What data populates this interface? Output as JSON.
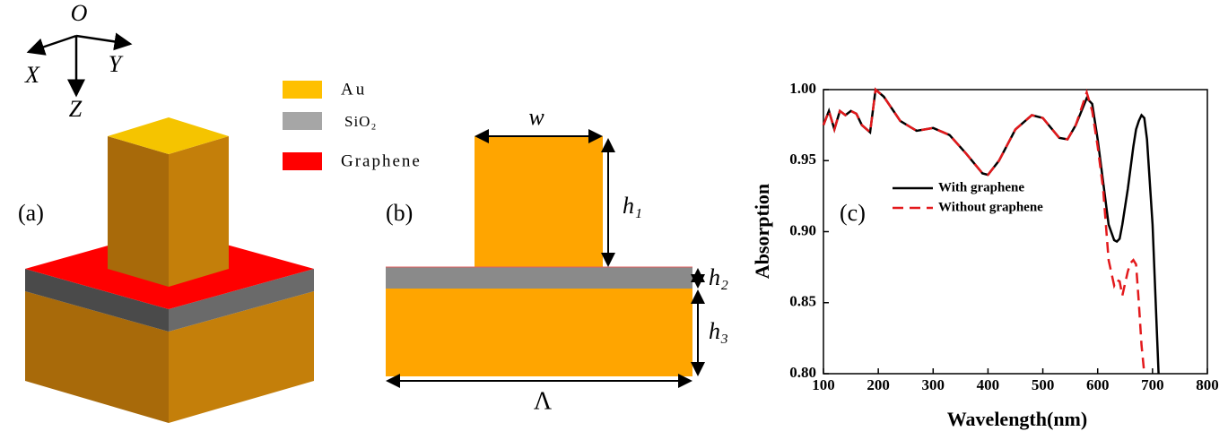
{
  "panel_a": {
    "axes": {
      "origin": "O",
      "x": "X",
      "y": "Y",
      "z": "Z"
    },
    "legend": [
      "Au",
      "SiO₂",
      "Graphene"
    ],
    "label": "(a)"
  },
  "panel_b": {
    "width": "w",
    "h1": "h₁",
    "h2": "h₂",
    "h3": "h₃",
    "period": "Λ",
    "label": "(b)"
  },
  "chart_data": {
    "type": "line",
    "label": "(c)",
    "x_label": "Wavelength(nm)",
    "y_label": "Absorption",
    "x": [
      100,
      110,
      120,
      130,
      140,
      150,
      160,
      170,
      185,
      195,
      210,
      240,
      270,
      300,
      330,
      360,
      390,
      400,
      420,
      450,
      480,
      500,
      530,
      545,
      560,
      580,
      590,
      600,
      610,
      620,
      630,
      635,
      640,
      645,
      655,
      660,
      665,
      670,
      675,
      680,
      685,
      690,
      700,
      711
    ],
    "series": [
      {
        "name": "With graphene",
        "color": "#000000",
        "dash": "solid",
        "values": [
          0.975,
          0.985,
          0.972,
          0.985,
          0.982,
          0.985,
          0.983,
          0.975,
          0.97,
          1.0,
          0.995,
          0.978,
          0.971,
          0.973,
          0.968,
          0.955,
          0.941,
          0.94,
          0.95,
          0.972,
          0.982,
          0.98,
          0.966,
          0.965,
          0.975,
          0.994,
          0.99,
          0.965,
          0.935,
          0.905,
          0.894,
          0.893,
          0.895,
          0.905,
          0.93,
          0.945,
          0.96,
          0.972,
          0.978,
          0.982,
          0.98,
          0.965,
          0.905,
          0.8
        ]
      },
      {
        "name": "Without graphene",
        "color": "#e3191c",
        "dash": "dashed",
        "values": [
          0.975,
          0.985,
          0.972,
          0.985,
          0.982,
          0.985,
          0.983,
          0.975,
          0.97,
          1.0,
          0.995,
          0.978,
          0.971,
          0.973,
          0.968,
          0.955,
          0.941,
          0.94,
          0.95,
          0.972,
          0.982,
          0.98,
          0.966,
          0.965,
          0.975,
          0.998,
          0.985,
          0.96,
          0.93,
          0.88,
          0.862,
          0.866,
          0.865,
          0.855,
          0.872,
          0.878,
          0.88,
          0.877,
          0.85,
          0.82,
          0.8,
          null,
          null,
          null
        ]
      }
    ],
    "xlim": [
      100,
      800
    ],
    "ylim": [
      0.8,
      1.0
    ],
    "xticks": [
      100,
      200,
      300,
      400,
      500,
      600,
      700,
      800
    ],
    "yticks": [
      {
        "value": 0.8,
        "label": "0.80"
      },
      0.85,
      {
        "value": 0.9,
        "label": "0.90"
      },
      0.95,
      {
        "value": 1.0,
        "label": "1.00"
      }
    ]
  }
}
